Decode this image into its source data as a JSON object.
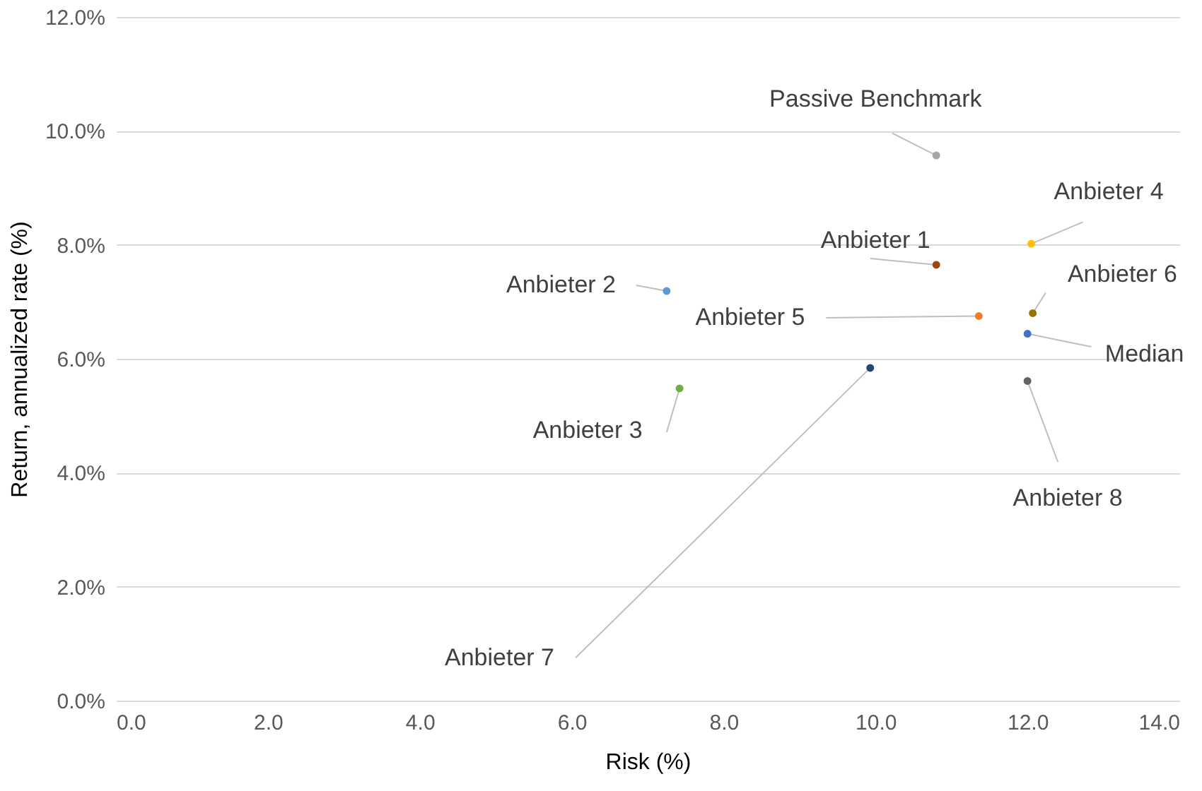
{
  "chart_data": {
    "type": "scatter",
    "xlabel": "Risk (%)",
    "ylabel": "Return, annualized rate (%)",
    "xlim": [
      0,
      14
    ],
    "ylim": [
      0,
      12
    ],
    "xticks": [
      {
        "value": 0,
        "label": "0.0"
      },
      {
        "value": 2,
        "label": "2.0"
      },
      {
        "value": 4,
        "label": "4.0"
      },
      {
        "value": 6,
        "label": "6.0"
      },
      {
        "value": 8,
        "label": "8.0"
      },
      {
        "value": 10,
        "label": "10.0"
      },
      {
        "value": 12,
        "label": "12.0"
      },
      {
        "value": 14,
        "label": "14.0"
      }
    ],
    "yticks": [
      {
        "value": 0,
        "label": "0.0%"
      },
      {
        "value": 2,
        "label": "2.0%"
      },
      {
        "value": 4,
        "label": "4.0%"
      },
      {
        "value": 6,
        "label": "6.0%"
      },
      {
        "value": 8,
        "label": "8.0%"
      },
      {
        "value": 10,
        "label": "10.0%"
      },
      {
        "value": 12,
        "label": "12.0%"
      }
    ],
    "grid": "y",
    "legend": false,
    "marker": "circle",
    "series": [
      {
        "name": "Passive Benchmark",
        "color": "#a5a5a5",
        "x": [
          10.8
        ],
        "values": [
          9.57
        ]
      },
      {
        "name": "Anbieter 4",
        "color": "#ffc000",
        "x": [
          12.05
        ],
        "values": [
          8.02
        ]
      },
      {
        "name": "Anbieter 1",
        "color": "#9e480e",
        "x": [
          10.8
        ],
        "values": [
          7.65
        ]
      },
      {
        "name": "Anbieter 2",
        "color": "#5b9bd5",
        "x": [
          7.25
        ],
        "values": [
          7.19
        ]
      },
      {
        "name": "Anbieter 5",
        "color": "#ed7d31",
        "x": [
          11.36
        ],
        "values": [
          6.75
        ]
      },
      {
        "name": "Anbieter 6",
        "color": "#997300",
        "x": [
          12.07
        ],
        "values": [
          6.8
        ]
      },
      {
        "name": "Median",
        "color": "#4472c4",
        "x": [
          12.0
        ],
        "values": [
          6.44
        ]
      },
      {
        "name": "Anbieter 3",
        "color": "#70ad47",
        "x": [
          7.42
        ],
        "values": [
          5.48
        ]
      },
      {
        "name": "Anbieter 7",
        "color": "#264478",
        "x": [
          9.93
        ],
        "values": [
          5.84
        ]
      },
      {
        "name": "Anbieter 8",
        "color": "#636363",
        "x": [
          12.0
        ],
        "values": [
          5.61
        ]
      }
    ]
  }
}
